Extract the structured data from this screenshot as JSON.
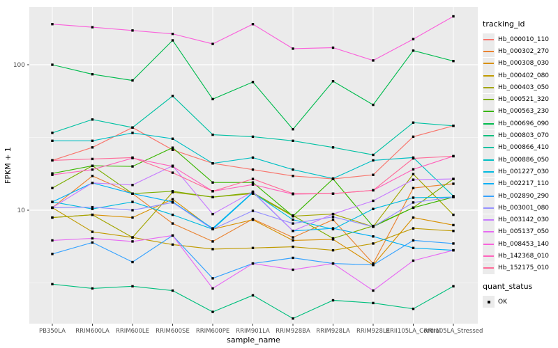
{
  "figure": {
    "panel_color": "#EBEBEB",
    "grid_color": "#FFFFFF",
    "point_color": "#000000",
    "tick_text_color": "#4D4D4D",
    "legend": {
      "tracking_title": "tracking_id",
      "quant_title": "quant_status",
      "quant_ok_label": "OK"
    }
  },
  "chart_data": {
    "type": "line",
    "title": "",
    "xlabel": "sample_name",
    "ylabel": "FPKM + 1",
    "y_scale": "log10",
    "ylim": [
      1.6,
      250
    ],
    "y_major_ticks": [
      100,
      10
    ],
    "y_tick_labels": [
      "100",
      "10"
    ],
    "y_minor_ticks": [
      31.62,
      3.162
    ],
    "grid": true,
    "legend_position": "right",
    "marker": "black-square",
    "quant_status": "OK",
    "categories": [
      "PB350LA",
      "RRIM600LA",
      "RRIM600LE",
      "RRIM600SE",
      "RRIM600PE",
      "RRIM901LA",
      "RRIM928BA",
      "RRIM928LA",
      "RRIM928LE",
      "RRII105LA_Control",
      "RRII105LA_Stressed"
    ],
    "series": [
      {
        "name": "Hb_000010_110",
        "color": "#F8766D",
        "values": [
          22,
          27,
          37,
          26,
          21,
          19,
          17.2,
          16.4,
          17.5,
          32,
          38
        ]
      },
      {
        "name": "Hb_000302_270",
        "color": "#EA8331",
        "values": [
          10.4,
          17.2,
          13,
          8.1,
          6.1,
          8.7,
          6.5,
          8.6,
          4.3,
          14.2,
          15.2
        ]
      },
      {
        "name": "Hb_000308_030",
        "color": "#D89000",
        "values": [
          8.9,
          9.3,
          8.9,
          11.9,
          7.4,
          8.6,
          6.2,
          6.3,
          4.2,
          8.9,
          7.9
        ]
      },
      {
        "name": "Hb_000402_080",
        "color": "#C09B00",
        "values": [
          10.4,
          7.1,
          6.5,
          5.8,
          5.4,
          5.5,
          5.6,
          5.3,
          5.9,
          7.5,
          7.2
        ]
      },
      {
        "name": "Hb_000403_050",
        "color": "#A3A500",
        "values": [
          8.9,
          9.3,
          6.5,
          13.3,
          12.3,
          13,
          9.1,
          9.4,
          7.7,
          17.7,
          9.3
        ]
      },
      {
        "name": "Hb_000521_320",
        "color": "#7CAE00",
        "values": [
          14.2,
          20.2,
          13,
          13.5,
          12.3,
          13.2,
          9.2,
          6.4,
          7.8,
          10.4,
          16.4
        ]
      },
      {
        "name": "Hb_000563_230",
        "color": "#39B600",
        "values": [
          17.9,
          20.2,
          20,
          26.9,
          15.5,
          15.5,
          9.1,
          16.4,
          7.7,
          10.4,
          12.3
        ]
      },
      {
        "name": "Hb_000696_090",
        "color": "#00BB4E",
        "values": [
          100,
          86,
          78,
          147,
          58,
          76,
          36,
          77,
          53,
          125,
          106
        ]
      },
      {
        "name": "Hb_000803_070",
        "color": "#00BF7D",
        "values": [
          3.1,
          2.9,
          3,
          2.8,
          2,
          2.6,
          1.8,
          2.4,
          2.3,
          2.1,
          3
        ]
      },
      {
        "name": "Hb_000866_410",
        "color": "#00C1A3",
        "values": [
          34,
          42,
          37,
          61,
          33,
          32,
          30,
          27,
          24,
          40,
          38
        ]
      },
      {
        "name": "Hb_000886_050",
        "color": "#00BFC4",
        "values": [
          30,
          30,
          34,
          31,
          21,
          23,
          19,
          16.5,
          22,
          23,
          12.5
        ]
      },
      {
        "name": "Hb_001227_030",
        "color": "#00BAE0",
        "values": [
          11.4,
          10.2,
          11.4,
          9.3,
          7.4,
          13.2,
          8.6,
          7.4,
          10.2,
          12.2,
          12.3
        ]
      },
      {
        "name": "Hb_002217_110",
        "color": "#00B0F6",
        "values": [
          11.4,
          15.4,
          13,
          11.4,
          7.5,
          13.3,
          7.2,
          7.5,
          6.6,
          5.5,
          5.3
        ]
      },
      {
        "name": "Hb_002890_290",
        "color": "#35A2FF",
        "values": [
          5,
          6,
          4.4,
          6.7,
          3.4,
          4.3,
          4.7,
          4.3,
          4.2,
          6.2,
          5.9
        ]
      },
      {
        "name": "Hb_003001_080",
        "color": "#9590FF",
        "values": [
          10.4,
          10.5,
          10,
          11.3,
          7.4,
          9.9,
          8.1,
          9,
          7.7,
          11.3,
          12.3
        ]
      },
      {
        "name": "Hb_003142_030",
        "color": "#C77CFF",
        "values": [
          10.4,
          15.4,
          14.9,
          20.2,
          9.4,
          13.4,
          7.2,
          9.4,
          11.6,
          16.2,
          16.4
        ]
      },
      {
        "name": "Hb_005137_050",
        "color": "#E76BF3",
        "values": [
          6.2,
          6.4,
          6.1,
          6.7,
          2.9,
          4.3,
          3.9,
          4.3,
          2.8,
          4.5,
          5.3
        ]
      },
      {
        "name": "Hb_008453_140",
        "color": "#FA62DB",
        "values": [
          190,
          181,
          172,
          163,
          139,
          190,
          129,
          131,
          107,
          150,
          215
        ]
      },
      {
        "name": "Hb_142368_010",
        "color": "#FF62BC",
        "values": [
          17.5,
          19,
          22.8,
          20,
          13.5,
          15,
          12.9,
          13,
          13.7,
          19.1,
          23.5
        ]
      },
      {
        "name": "Hb_152175_010",
        "color": "#FF6A98",
        "values": [
          22,
          22.5,
          23,
          18.1,
          13.5,
          16.4,
          13,
          13,
          13.7,
          22.7,
          23.5
        ]
      }
    ]
  }
}
